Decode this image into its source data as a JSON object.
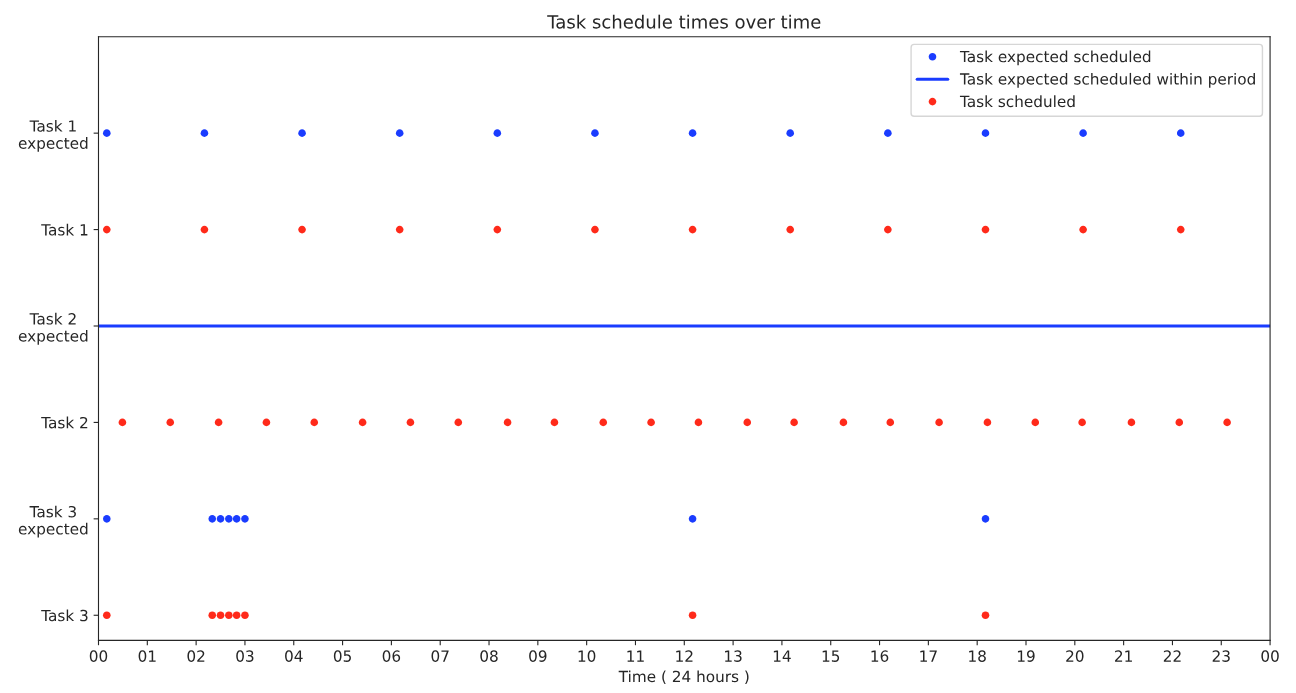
{
  "chart_data": {
    "type": "scatter",
    "orientation": "horizontal",
    "title": "Task schedule times over time",
    "xlabel": "Time ( 24 hours )",
    "categories": [
      "Task 1\nexpected",
      "Task 1",
      "Task 2\nexpected",
      "Task 2",
      "Task 3\nexpected",
      "Task 3"
    ],
    "xlim": [
      0,
      24
    ],
    "xticks": [
      {
        "value": 0,
        "label": "00"
      },
      {
        "value": 1,
        "label": "01"
      },
      {
        "value": 2,
        "label": "02"
      },
      {
        "value": 3,
        "label": "03"
      },
      {
        "value": 4,
        "label": "04"
      },
      {
        "value": 5,
        "label": "05"
      },
      {
        "value": 6,
        "label": "06"
      },
      {
        "value": 7,
        "label": "07"
      },
      {
        "value": 8,
        "label": "08"
      },
      {
        "value": 9,
        "label": "09"
      },
      {
        "value": 10,
        "label": "10"
      },
      {
        "value": 11,
        "label": "11"
      },
      {
        "value": 12,
        "label": "12"
      },
      {
        "value": 13,
        "label": "13"
      },
      {
        "value": 14,
        "label": "14"
      },
      {
        "value": 15,
        "label": "15"
      },
      {
        "value": 16,
        "label": "16"
      },
      {
        "value": 17,
        "label": "17"
      },
      {
        "value": 18,
        "label": "18"
      },
      {
        "value": 19,
        "label": "19"
      },
      {
        "value": 20,
        "label": "20"
      },
      {
        "value": 21,
        "label": "21"
      },
      {
        "value": 22,
        "label": "22"
      },
      {
        "value": 23,
        "label": "23"
      },
      {
        "value": 24,
        "label": "00"
      }
    ],
    "ref_lines": [
      {
        "axis": "y",
        "value": "Task 2\nexpected",
        "label": "Task expected scheduled within period",
        "color": "#1a3cff",
        "line_style": "solid"
      }
    ],
    "series": [
      {
        "name": "Task expected scheduled",
        "color": "#1a3cff",
        "values": [
          0.17,
          null,
          null,
          null,
          0.17,
          null
        ]
      },
      {
        "color": "#1a3cff",
        "values": [
          2.17,
          null,
          null,
          null,
          2.33,
          null
        ]
      },
      {
        "color": "#1a3cff",
        "values": [
          4.17,
          null,
          null,
          null,
          2.5,
          null
        ]
      },
      {
        "color": "#1a3cff",
        "values": [
          6.17,
          null,
          null,
          null,
          2.67,
          null
        ]
      },
      {
        "color": "#1a3cff",
        "values": [
          8.17,
          null,
          null,
          null,
          2.83,
          null
        ]
      },
      {
        "color": "#1a3cff",
        "values": [
          10.17,
          null,
          null,
          null,
          3.0,
          null
        ]
      },
      {
        "color": "#1a3cff",
        "values": [
          12.17,
          null,
          null,
          null,
          12.17,
          null
        ]
      },
      {
        "color": "#1a3cff",
        "values": [
          14.17,
          null,
          null,
          null,
          18.17,
          null
        ]
      },
      {
        "color": "#1a3cff",
        "values": [
          16.17,
          null,
          null,
          null,
          null,
          null
        ]
      },
      {
        "color": "#1a3cff",
        "values": [
          18.17,
          null,
          null,
          null,
          null,
          null
        ]
      },
      {
        "color": "#1a3cff",
        "values": [
          20.17,
          null,
          null,
          null,
          null,
          null
        ]
      },
      {
        "color": "#1a3cff",
        "values": [
          22.17,
          null,
          null,
          null,
          null,
          null
        ]
      },
      {
        "name": "Task scheduled",
        "color": "#ff2a1a",
        "values": [
          null,
          0.17,
          null,
          0.49,
          null,
          0.17
        ]
      },
      {
        "color": "#ff2a1a",
        "values": [
          null,
          2.17,
          null,
          1.47,
          null,
          2.33
        ]
      },
      {
        "color": "#ff2a1a",
        "values": [
          null,
          4.17,
          null,
          2.46,
          null,
          2.5
        ]
      },
      {
        "color": "#ff2a1a",
        "values": [
          null,
          6.17,
          null,
          3.44,
          null,
          2.67
        ]
      },
      {
        "color": "#ff2a1a",
        "values": [
          null,
          8.17,
          null,
          4.42,
          null,
          2.83
        ]
      },
      {
        "color": "#ff2a1a",
        "values": [
          null,
          10.17,
          null,
          5.41,
          null,
          3.0
        ]
      },
      {
        "color": "#ff2a1a",
        "values": [
          null,
          12.17,
          null,
          6.39,
          null,
          12.17
        ]
      },
      {
        "color": "#ff2a1a",
        "values": [
          null,
          14.17,
          null,
          7.37,
          null,
          18.17
        ]
      },
      {
        "color": "#ff2a1a",
        "values": [
          null,
          16.17,
          null,
          8.38,
          null,
          null
        ]
      },
      {
        "color": "#ff2a1a",
        "values": [
          null,
          18.17,
          null,
          9.34,
          null,
          null
        ]
      },
      {
        "color": "#ff2a1a",
        "values": [
          null,
          20.17,
          null,
          10.34,
          null,
          null
        ]
      },
      {
        "color": "#ff2a1a",
        "values": [
          null,
          22.17,
          null,
          11.32,
          null,
          null
        ]
      },
      {
        "color": "#ff2a1a",
        "values": [
          null,
          null,
          null,
          12.29,
          null,
          null
        ]
      },
      {
        "color": "#ff2a1a",
        "values": [
          null,
          null,
          null,
          13.29,
          null,
          null
        ]
      },
      {
        "color": "#ff2a1a",
        "values": [
          null,
          null,
          null,
          14.25,
          null,
          null
        ]
      },
      {
        "color": "#ff2a1a",
        "values": [
          null,
          null,
          null,
          15.26,
          null,
          null
        ]
      },
      {
        "color": "#ff2a1a",
        "values": [
          null,
          null,
          null,
          16.22,
          null,
          null
        ]
      },
      {
        "color": "#ff2a1a",
        "values": [
          null,
          null,
          null,
          17.22,
          null,
          null
        ]
      },
      {
        "color": "#ff2a1a",
        "values": [
          null,
          null,
          null,
          18.21,
          null,
          null
        ]
      },
      {
        "color": "#ff2a1a",
        "values": [
          null,
          null,
          null,
          19.19,
          null,
          null
        ]
      },
      {
        "color": "#ff2a1a",
        "values": [
          null,
          null,
          null,
          20.15,
          null,
          null
        ]
      },
      {
        "color": "#ff2a1a",
        "values": [
          null,
          null,
          null,
          21.16,
          null,
          null
        ]
      },
      {
        "color": "#ff2a1a",
        "values": [
          null,
          null,
          null,
          22.14,
          null,
          null
        ]
      },
      {
        "color": "#ff2a1a",
        "values": [
          null,
          null,
          null,
          23.12,
          null,
          null
        ]
      }
    ],
    "marker": "circle",
    "grid": false,
    "legend": "top right"
  }
}
